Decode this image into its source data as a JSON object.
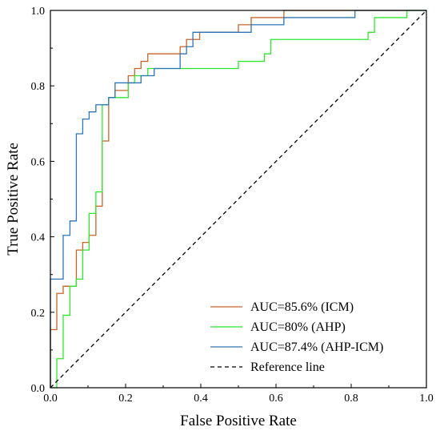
{
  "chart_data": {
    "type": "line",
    "xlabel": "False Positive Rate",
    "ylabel": "True Positive Rate",
    "xlim": [
      0,
      1
    ],
    "ylim": [
      0,
      1
    ],
    "xticks": [
      "0.0",
      "0.2",
      "0.4",
      "0.6",
      "0.8",
      "1.0"
    ],
    "yticks": [
      "0.0",
      "0.2",
      "0.4",
      "0.6",
      "0.8",
      "1.0"
    ],
    "grid": false,
    "legend_position": "bottom-right",
    "series": [
      {
        "name": "AUC=85.6% (ICM)",
        "color": "#c8642a",
        "dash": "none",
        "points": [
          [
            0.0,
            0.0
          ],
          [
            0.0,
            0.154
          ],
          [
            0.017,
            0.154
          ],
          [
            0.017,
            0.25
          ],
          [
            0.034,
            0.25
          ],
          [
            0.034,
            0.269
          ],
          [
            0.069,
            0.269
          ],
          [
            0.069,
            0.365
          ],
          [
            0.086,
            0.365
          ],
          [
            0.086,
            0.385
          ],
          [
            0.103,
            0.385
          ],
          [
            0.103,
            0.404
          ],
          [
            0.121,
            0.404
          ],
          [
            0.121,
            0.481
          ],
          [
            0.138,
            0.481
          ],
          [
            0.138,
            0.654
          ],
          [
            0.155,
            0.654
          ],
          [
            0.155,
            0.769
          ],
          [
            0.172,
            0.769
          ],
          [
            0.172,
            0.788
          ],
          [
            0.207,
            0.788
          ],
          [
            0.207,
            0.827
          ],
          [
            0.224,
            0.827
          ],
          [
            0.224,
            0.846
          ],
          [
            0.241,
            0.846
          ],
          [
            0.241,
            0.865
          ],
          [
            0.259,
            0.865
          ],
          [
            0.259,
            0.885
          ],
          [
            0.345,
            0.885
          ],
          [
            0.345,
            0.904
          ],
          [
            0.362,
            0.904
          ],
          [
            0.362,
            0.923
          ],
          [
            0.397,
            0.923
          ],
          [
            0.397,
            0.942
          ],
          [
            0.5,
            0.942
          ],
          [
            0.5,
            0.962
          ],
          [
            0.534,
            0.962
          ],
          [
            0.534,
            0.981
          ],
          [
            0.621,
            0.981
          ],
          [
            0.621,
            1.0
          ],
          [
            1.0,
            1.0
          ]
        ]
      },
      {
        "name": "AUC=80% (AHP)",
        "color": "#2ee82e",
        "dash": "none",
        "points": [
          [
            0.0,
            0.0
          ],
          [
            0.017,
            0.0
          ],
          [
            0.017,
            0.077
          ],
          [
            0.034,
            0.077
          ],
          [
            0.034,
            0.192
          ],
          [
            0.052,
            0.192
          ],
          [
            0.052,
            0.269
          ],
          [
            0.069,
            0.269
          ],
          [
            0.069,
            0.288
          ],
          [
            0.086,
            0.288
          ],
          [
            0.086,
            0.365
          ],
          [
            0.103,
            0.365
          ],
          [
            0.103,
            0.462
          ],
          [
            0.121,
            0.462
          ],
          [
            0.121,
            0.519
          ],
          [
            0.138,
            0.519
          ],
          [
            0.138,
            0.75
          ],
          [
            0.155,
            0.75
          ],
          [
            0.155,
            0.769
          ],
          [
            0.19,
            0.769
          ],
          [
            0.19,
            0.769
          ],
          [
            0.207,
            0.769
          ],
          [
            0.207,
            0.808
          ],
          [
            0.224,
            0.808
          ],
          [
            0.224,
            0.827
          ],
          [
            0.259,
            0.827
          ],
          [
            0.259,
            0.846
          ],
          [
            0.345,
            0.846
          ],
          [
            0.5,
            0.846
          ],
          [
            0.5,
            0.865
          ],
          [
            0.569,
            0.865
          ],
          [
            0.569,
            0.885
          ],
          [
            0.586,
            0.885
          ],
          [
            0.586,
            0.923
          ],
          [
            0.845,
            0.923
          ],
          [
            0.845,
            0.942
          ],
          [
            0.862,
            0.942
          ],
          [
            0.862,
            0.981
          ],
          [
            0.948,
            0.981
          ],
          [
            0.948,
            1.0
          ],
          [
            1.0,
            1.0
          ]
        ]
      },
      {
        "name": "AUC=87.4% (AHP-ICM)",
        "color": "#2d74b8",
        "dash": "none",
        "points": [
          [
            0.0,
            0.0
          ],
          [
            0.0,
            0.288
          ],
          [
            0.034,
            0.288
          ],
          [
            0.034,
            0.404
          ],
          [
            0.052,
            0.404
          ],
          [
            0.052,
            0.442
          ],
          [
            0.069,
            0.442
          ],
          [
            0.069,
            0.673
          ],
          [
            0.086,
            0.673
          ],
          [
            0.086,
            0.712
          ],
          [
            0.103,
            0.712
          ],
          [
            0.103,
            0.731
          ],
          [
            0.121,
            0.731
          ],
          [
            0.121,
            0.75
          ],
          [
            0.138,
            0.75
          ],
          [
            0.138,
            0.75
          ],
          [
            0.155,
            0.75
          ],
          [
            0.155,
            0.769
          ],
          [
            0.172,
            0.769
          ],
          [
            0.172,
            0.808
          ],
          [
            0.241,
            0.808
          ],
          [
            0.241,
            0.827
          ],
          [
            0.276,
            0.827
          ],
          [
            0.276,
            0.846
          ],
          [
            0.345,
            0.846
          ],
          [
            0.345,
            0.885
          ],
          [
            0.362,
            0.885
          ],
          [
            0.362,
            0.904
          ],
          [
            0.379,
            0.904
          ],
          [
            0.379,
            0.942
          ],
          [
            0.534,
            0.942
          ],
          [
            0.534,
            0.962
          ],
          [
            0.621,
            0.962
          ],
          [
            0.621,
            0.981
          ],
          [
            0.81,
            0.981
          ],
          [
            0.81,
            1.0
          ],
          [
            1.0,
            1.0
          ]
        ]
      },
      {
        "name": "Reference line",
        "color": "#000000",
        "dash": "dashed",
        "points": [
          [
            0.0,
            0.0
          ],
          [
            1.0,
            1.0
          ]
        ]
      }
    ]
  }
}
